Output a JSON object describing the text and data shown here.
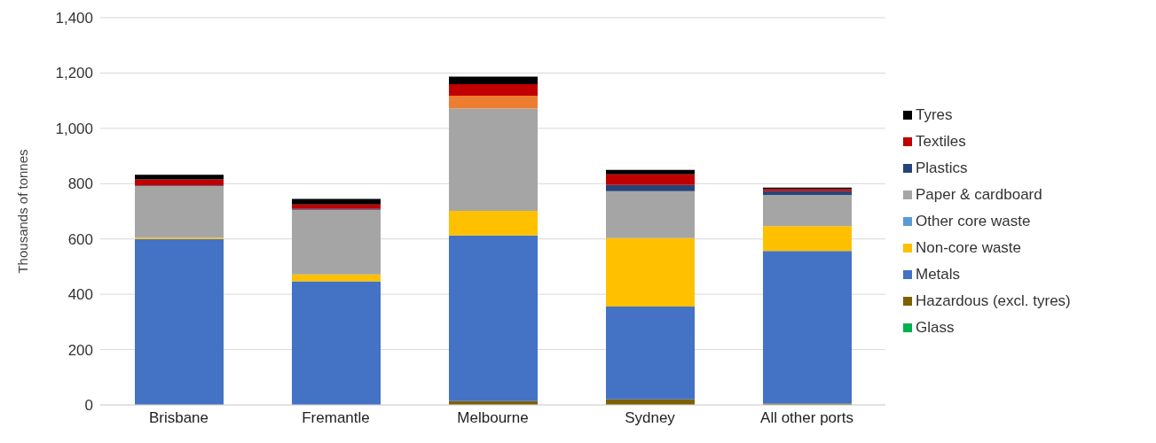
{
  "chart_data": {
    "type": "bar",
    "stacked": true,
    "ylabel": "Thousands of tonnes",
    "categories": [
      "Brisbane",
      "Fremantle",
      "Melbourne",
      "Sydney",
      "All other ports"
    ],
    "ylim": [
      0,
      1400
    ],
    "yticks": [
      {
        "value": 0,
        "label": "0"
      },
      {
        "value": 200,
        "label": "200"
      },
      {
        "value": 400,
        "label": "400"
      },
      {
        "value": 600,
        "label": "600"
      },
      {
        "value": 800,
        "label": "800"
      },
      {
        "value": 1000,
        "label": "1,000"
      },
      {
        "value": 1200,
        "label": "1,200"
      },
      {
        "value": 1400,
        "label": "1,400"
      }
    ],
    "grid": "y",
    "legend": "right",
    "series": [
      {
        "name": "Glass",
        "color": "#00b050",
        "values": [
          null,
          null,
          null,
          null,
          null
        ]
      },
      {
        "name": "Hazardous (excl. tyres)",
        "color": "#7f6000",
        "values": [
          null,
          null,
          14,
          20,
          5
        ]
      },
      {
        "name": "Metals",
        "color": "#4472c4",
        "values": [
          600,
          447,
          599,
          336,
          552
        ]
      },
      {
        "name": "Non-core waste",
        "color": "#ffc000",
        "values": [
          5,
          25,
          89,
          247,
          89
        ]
      },
      {
        "name": "Other core waste",
        "color": "#5b9bd5",
        "values": [
          null,
          null,
          null,
          null,
          null
        ]
      },
      {
        "name": "Paper & cardboard",
        "color": "#a5a5a5",
        "values": [
          186,
          234,
          370,
          170,
          113
        ]
      },
      {
        "name": "Plastics",
        "color": "#264478",
        "colors": [
          "#264478",
          "#264478",
          "#ed7d31",
          "#264478",
          "#264478"
        ],
        "values": [
          3,
          3,
          46,
          22,
          14
        ]
      },
      {
        "name": "Textiles",
        "color": "#c00000",
        "values": [
          21,
          16,
          42,
          39,
          8
        ]
      },
      {
        "name": "Tyres",
        "color": "#000000",
        "values": [
          17,
          20,
          27,
          16,
          5
        ]
      }
    ]
  }
}
